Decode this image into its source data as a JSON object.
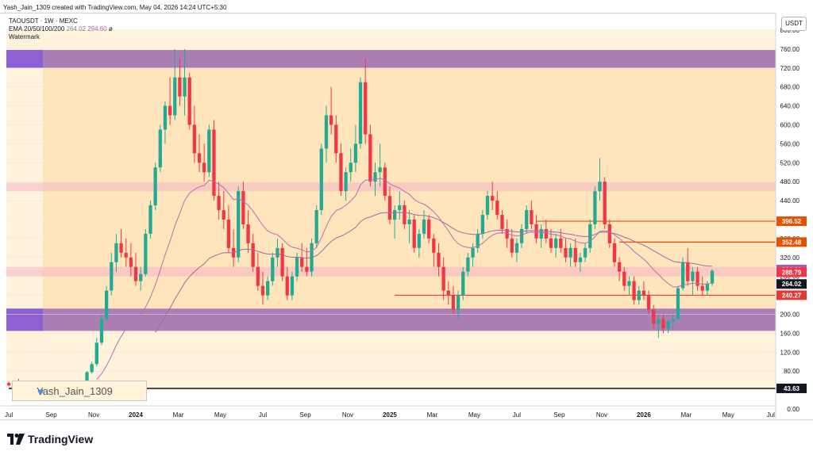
{
  "caption": "Yash_Jain_1309 created with TradingView.com, May 04, 2026 14:24 UTC+5:30",
  "legend": {
    "symbol": "TAOUSDT · 1W · MEXC",
    "ema_label": "EMA 20/50/100/200",
    "ema_value_a": "264.02",
    "ema_value_b": "294.60",
    "ema_value_c": "ø",
    "watermark_label": "Watermark"
  },
  "currency": "USDT",
  "watermark_text": "Yash_Jain_1309",
  "brand": "TradingView",
  "colors": {
    "bull": "#22ab94",
    "bear": "#f23645",
    "zone_purple": "#9c6db5",
    "zone_orange": "#ffd9a0",
    "zone_pink": "#f3b5c7",
    "line_orange": "#e65100",
    "line_red": "#e53935",
    "ema_main": "#b46fb4",
    "ema_slow": "#a06aa0"
  },
  "chart_data": {
    "type": "candlestick",
    "y_scale": "log",
    "ylim": [
      0,
      820
    ],
    "yticks": [
      "800.00",
      "760.00",
      "720.00",
      "680.00",
      "640.00",
      "600.00",
      "560.00",
      "520.00",
      "480.00",
      "440.00",
      "400.00",
      "360.00",
      "320.00",
      "280.00",
      "240.00",
      "200.00",
      "160.00",
      "120.00",
      "80.00",
      "40.00",
      "0.00"
    ],
    "yticks_values": [
      800,
      760,
      720,
      680,
      640,
      600,
      560,
      520,
      480,
      440,
      400,
      360,
      320,
      280,
      240,
      200,
      160,
      120,
      80,
      40,
      0
    ],
    "xticks": [
      {
        "label": "Jul",
        "t": 0
      },
      {
        "label": "Sep",
        "t": 8.7
      },
      {
        "label": "Nov",
        "t": 17.4
      },
      {
        "label": "2024",
        "t": 26
      },
      {
        "label": "Mar",
        "t": 34.7
      },
      {
        "label": "May",
        "t": 43.3
      },
      {
        "label": "Jul",
        "t": 52
      },
      {
        "label": "Sep",
        "t": 60.7
      },
      {
        "label": "Nov",
        "t": 69.4
      },
      {
        "label": "2025",
        "t": 78
      },
      {
        "label": "Mar",
        "t": 86.7
      },
      {
        "label": "May",
        "t": 95.3
      },
      {
        "label": "Jul",
        "t": 104
      },
      {
        "label": "Sep",
        "t": 112.7
      },
      {
        "label": "Nov",
        "t": 121.4
      },
      {
        "label": "2026",
        "t": 130
      },
      {
        "label": "Mar",
        "t": 138.7
      },
      {
        "label": "May",
        "t": 147.3
      },
      {
        "label": "Jul",
        "t": 156
      }
    ],
    "price_labels": [
      {
        "value": "396.52",
        "price": 396.52,
        "color": "#e65100"
      },
      {
        "value": "352.48",
        "price": 352.48,
        "color": "#e65100"
      },
      {
        "value": "294.60",
        "price": 294.6,
        "color": "#b058b0"
      },
      {
        "value": "288.79",
        "price": 288.79,
        "color": "#f23645"
      },
      {
        "value": "264.02",
        "price": 264.02,
        "color": "#131722"
      },
      {
        "value": "240.27",
        "price": 240.27,
        "color": "#e53935"
      },
      {
        "value": "43.63",
        "price": 43.63,
        "color": "#131722"
      }
    ],
    "zones": [
      {
        "name": "top-resistance-zone",
        "low": 720,
        "high": 758,
        "color": "zone_purple"
      },
      {
        "name": "bottom-support-zone",
        "low": 165,
        "high": 212,
        "color": "zone_purple"
      },
      {
        "name": "mid-zone",
        "low": 460,
        "high": 478,
        "color": "zone_pink"
      },
      {
        "name": "lower-mid-zone",
        "low": 280,
        "high": 300,
        "color": "zone_pink"
      }
    ],
    "hlines": [
      {
        "name": "level-396",
        "price": 396.52,
        "t_start": 108,
        "color": "#e65100"
      },
      {
        "name": "level-352",
        "price": 352.48,
        "t_start": 125,
        "color": "#e65100"
      },
      {
        "name": "level-240",
        "price": 240.27,
        "t_start": 79,
        "color": "#e53935"
      },
      {
        "name": "level-43",
        "price": 43.63,
        "t_start": 0,
        "color": "#131722"
      }
    ],
    "candles": [
      [
        55,
        58,
        48,
        50
      ],
      [
        50,
        60,
        47,
        57
      ],
      [
        57,
        64,
        52,
        55
      ],
      [
        55,
        58,
        50,
        52
      ],
      [
        52,
        55,
        48,
        50
      ],
      [
        50,
        53,
        46,
        48
      ],
      [
        48,
        52,
        44,
        46
      ],
      [
        46,
        49,
        43,
        45
      ],
      [
        45,
        48,
        42,
        44
      ],
      [
        44,
        47,
        41,
        43
      ],
      [
        43,
        46,
        40,
        44
      ],
      [
        44,
        48,
        42,
        45
      ],
      [
        45,
        47,
        42,
        44
      ],
      [
        44,
        46,
        41,
        43
      ],
      [
        43,
        45,
        40,
        42
      ],
      [
        42,
        52,
        41,
        50
      ],
      [
        50,
        80,
        49,
        78
      ],
      [
        78,
        100,
        75,
        95
      ],
      [
        95,
        150,
        90,
        140
      ],
      [
        140,
        200,
        135,
        190
      ],
      [
        190,
        260,
        185,
        250
      ],
      [
        250,
        330,
        240,
        310
      ],
      [
        310,
        370,
        290,
        350
      ],
      [
        350,
        380,
        320,
        330
      ],
      [
        330,
        360,
        300,
        320
      ],
      [
        320,
        350,
        280,
        300
      ],
      [
        300,
        330,
        260,
        270
      ],
      [
        270,
        300,
        250,
        285
      ],
      [
        285,
        380,
        280,
        370
      ],
      [
        370,
        440,
        360,
        430
      ],
      [
        430,
        520,
        420,
        510
      ],
      [
        510,
        600,
        500,
        590
      ],
      [
        590,
        650,
        560,
        640
      ],
      [
        640,
        700,
        600,
        620
      ],
      [
        620,
        760,
        610,
        700
      ],
      [
        700,
        740,
        640,
        660
      ],
      [
        660,
        760,
        620,
        700
      ],
      [
        700,
        710,
        590,
        600
      ],
      [
        600,
        640,
        520,
        540
      ],
      [
        540,
        580,
        500,
        520
      ],
      [
        520,
        560,
        480,
        500
      ],
      [
        500,
        600,
        490,
        590
      ],
      [
        590,
        610,
        440,
        450
      ],
      [
        450,
        480,
        400,
        420
      ],
      [
        420,
        460,
        380,
        400
      ],
      [
        400,
        430,
        330,
        340
      ],
      [
        340,
        380,
        300,
        320
      ],
      [
        320,
        470,
        310,
        460
      ],
      [
        460,
        480,
        380,
        390
      ],
      [
        390,
        420,
        330,
        350
      ],
      [
        350,
        370,
        290,
        300
      ],
      [
        300,
        330,
        250,
        260
      ],
      [
        260,
        290,
        220,
        240
      ],
      [
        240,
        280,
        230,
        270
      ],
      [
        270,
        330,
        260,
        320
      ],
      [
        320,
        360,
        300,
        340
      ],
      [
        340,
        350,
        270,
        280
      ],
      [
        280,
        300,
        230,
        240
      ],
      [
        240,
        290,
        230,
        280
      ],
      [
        280,
        330,
        270,
        320
      ],
      [
        320,
        350,
        290,
        300
      ],
      [
        300,
        340,
        280,
        290
      ],
      [
        290,
        360,
        280,
        350
      ],
      [
        350,
        430,
        340,
        420
      ],
      [
        420,
        560,
        410,
        550
      ],
      [
        550,
        640,
        520,
        620
      ],
      [
        620,
        680,
        580,
        600
      ],
      [
        600,
        620,
        520,
        540
      ],
      [
        540,
        560,
        450,
        460
      ],
      [
        460,
        510,
        440,
        500
      ],
      [
        500,
        550,
        480,
        520
      ],
      [
        520,
        600,
        500,
        560
      ],
      [
        560,
        700,
        550,
        690
      ],
      [
        690,
        740,
        560,
        580
      ],
      [
        580,
        600,
        470,
        480
      ],
      [
        480,
        520,
        450,
        500
      ],
      [
        500,
        560,
        470,
        510
      ],
      [
        510,
        520,
        440,
        450
      ],
      [
        450,
        470,
        390,
        400
      ],
      [
        400,
        430,
        360,
        420
      ],
      [
        420,
        460,
        400,
        430
      ],
      [
        430,
        440,
        380,
        390
      ],
      [
        390,
        420,
        350,
        400
      ],
      [
        400,
        410,
        330,
        340
      ],
      [
        340,
        380,
        320,
        370
      ],
      [
        370,
        420,
        360,
        400
      ],
      [
        400,
        410,
        350,
        360
      ],
      [
        360,
        370,
        300,
        330
      ],
      [
        330,
        350,
        280,
        300
      ],
      [
        300,
        320,
        230,
        250
      ],
      [
        250,
        270,
        220,
        240
      ],
      [
        240,
        260,
        200,
        210
      ],
      [
        210,
        250,
        190,
        240
      ],
      [
        240,
        300,
        230,
        290
      ],
      [
        290,
        330,
        280,
        320
      ],
      [
        320,
        350,
        300,
        340
      ],
      [
        340,
        380,
        330,
        370
      ],
      [
        370,
        420,
        360,
        410
      ],
      [
        410,
        460,
        400,
        450
      ],
      [
        450,
        480,
        420,
        440
      ],
      [
        440,
        460,
        400,
        410
      ],
      [
        410,
        420,
        370,
        380
      ],
      [
        380,
        400,
        340,
        360
      ],
      [
        360,
        380,
        320,
        330
      ],
      [
        330,
        360,
        310,
        350
      ],
      [
        350,
        390,
        340,
        380
      ],
      [
        380,
        430,
        370,
        420
      ],
      [
        420,
        440,
        380,
        390
      ],
      [
        390,
        410,
        350,
        360
      ],
      [
        360,
        390,
        340,
        380
      ],
      [
        380,
        400,
        350,
        360
      ],
      [
        360,
        380,
        330,
        340
      ],
      [
        340,
        370,
        320,
        360
      ],
      [
        360,
        380,
        330,
        340
      ],
      [
        340,
        360,
        310,
        320
      ],
      [
        320,
        350,
        300,
        340
      ],
      [
        340,
        360,
        300,
        310
      ],
      [
        310,
        330,
        290,
        320
      ],
      [
        320,
        350,
        310,
        340
      ],
      [
        340,
        400,
        330,
        390
      ],
      [
        390,
        470,
        380,
        460
      ],
      [
        460,
        530,
        440,
        480
      ],
      [
        480,
        490,
        380,
        390
      ],
      [
        390,
        400,
        340,
        350
      ],
      [
        350,
        360,
        300,
        310
      ],
      [
        310,
        320,
        270,
        290
      ],
      [
        290,
        300,
        250,
        260
      ],
      [
        260,
        280,
        240,
        270
      ],
      [
        270,
        280,
        220,
        230
      ],
      [
        230,
        260,
        220,
        250
      ],
      [
        250,
        270,
        230,
        240
      ],
      [
        240,
        250,
        200,
        210
      ],
      [
        210,
        220,
        170,
        180
      ],
      [
        180,
        200,
        150,
        190
      ],
      [
        190,
        200,
        160,
        170
      ],
      [
        170,
        190,
        160,
        185
      ],
      [
        185,
        200,
        170,
        190
      ],
      [
        190,
        260,
        185,
        255
      ],
      [
        255,
        320,
        250,
        310
      ],
      [
        310,
        340,
        260,
        270
      ],
      [
        270,
        300,
        240,
        290
      ],
      [
        290,
        300,
        250,
        260
      ],
      [
        260,
        280,
        240,
        250
      ],
      [
        250,
        270,
        240,
        265
      ],
      [
        265,
        295,
        260,
        292
      ]
    ]
  }
}
